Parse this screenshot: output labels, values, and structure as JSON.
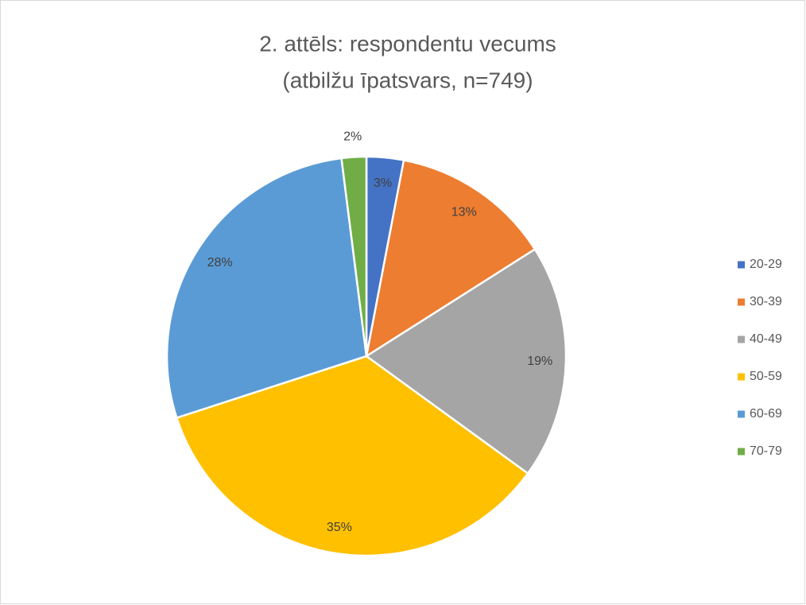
{
  "chart_data": {
    "type": "pie",
    "title": [
      "2. attēls: respondentu vecums",
      "(atbilžu īpatsvars, n=749)"
    ],
    "categories": [
      "20-29",
      "30-39",
      "40-49",
      "50-59",
      "60-69",
      "70-79"
    ],
    "values": [
      3,
      13,
      19,
      35,
      28,
      2
    ],
    "value_labels": [
      "3%",
      "13%",
      "19%",
      "35%",
      "28%",
      "2%"
    ],
    "colors": [
      "#4472c4",
      "#ed7d31",
      "#a5a5a5",
      "#ffc000",
      "#5b9bd5",
      "#70ad47"
    ],
    "legend": "right"
  }
}
